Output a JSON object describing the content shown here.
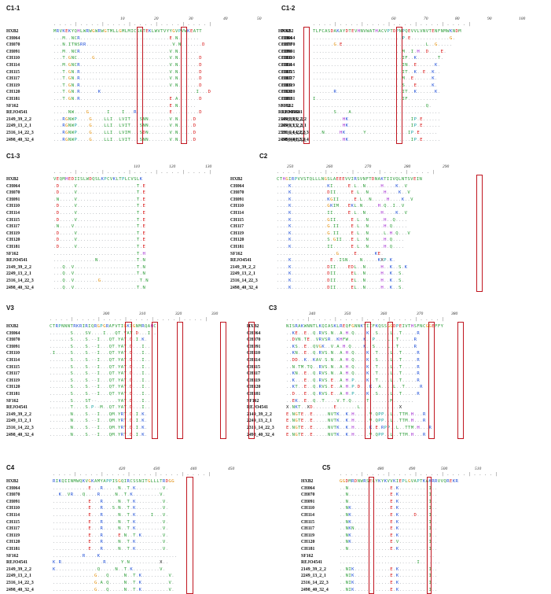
{
  "colors": {
    "box": "#c0151f",
    "H": "#e64a19",
    "blue": "#1f4fd6",
    "green": "#2e9d3a",
    "purple": "#a22bd1",
    "red": "#d91a1a",
    "orange": "#e08a00",
    "teal": "#1aa3a3",
    "dark": "#111111"
  },
  "panels": [
    {
      "title": "C1-1",
      "position_numbers": [
        "10",
        "20",
        "30",
        "40",
        "50"
      ],
      "rows": [
        {
          "label": "HXB2",
          "seq": "MRVKEKYQHLWRWGWRWGTMLLGMLMICSATEKLWVTVYYGVPVWKEATT",
          "right": "HXB2"
        },
        {
          "label": "CH064",
          "seq": "...M..NCR..............................E.N.......",
          "right": "CH064"
        },
        {
          "label": "CH070",
          "seq": "...N.ITNSRR.............................V.N.......D",
          "right": "CH070"
        },
        {
          "label": "CH091",
          "seq": "...M..NCR..............................V.N.......",
          "right": "CH091"
        },
        {
          "label": "CH110",
          "seq": "...T.GNC.....G.........................V.N.......D",
          "right": "CH110"
        },
        {
          "label": "CH114",
          "seq": "...M.GNCR..............................V.N.......D",
          "right": "CH114"
        },
        {
          "label": "CH115",
          "seq": "...T.GN.R..............................V.N.......D",
          "right": "CH115"
        },
        {
          "label": "CH117",
          "seq": "...T.GN.R..............................V.N.......D",
          "right": "CH117"
        },
        {
          "label": "CH119",
          "seq": "...T.GN.R..............................V.N.......D",
          "right": "CH119"
        },
        {
          "label": "CH120",
          "seq": "...T.GN.R......K................................I...D",
          "right": "CH120"
        },
        {
          "label": "CH181",
          "seq": "...T.GN.R..............................E.A.......D",
          "right": "CH181"
        },
        {
          "label": "SF162",
          "seq": ".......................................E.N......",
          "right": "SF162"
        },
        {
          "label": "REJO4541",
          "seq": ".....NW....G......I....I...R...........E.........D",
          "right": "REJO4541"
        },
        {
          "label": "2149_39_2_2",
          "seq": "...RGNWP....G....LLI..LVIT...SNN.......V.N.....D",
          "right": "2149_39_2_2"
        },
        {
          "label": "2249_13_2_1",
          "seq": "...RGNWP....G....LLI..LVIT...SNN.......V.N.....D",
          "right": "2249_13_2_1"
        },
        {
          "label": "2316_14_22_3",
          "seq": "...RGNWP....G....LLI..LVIM...SDN.......V.N.....D",
          "right": "2316_14_22_3"
        },
        {
          "label": "2498_40_32_4",
          "seq": "...RGNWP....G....LLI..LVIT...SNN.......V.N.....D",
          "right": "2498_40_32_4"
        }
      ]
    },
    {
      "title": "C1-2",
      "position_numbers": [
        "60",
        "70",
        "80",
        "90",
        "100"
      ],
      "rows": [
        {
          "label": "HXB2",
          "seq": "TLFCASDAKAYDTEVHNVWATHACVPTDPNPQEVVLVNVTENFNMWKNDM",
          "right": ""
        },
        {
          "label": "CH064",
          "seq": "..............................P.E.............G.",
          "right": ""
        },
        {
          "label": "CH070",
          "seq": ".......G.E............................L..G.....",
          "right": ""
        },
        {
          "label": "CH091",
          "seq": "..............................M..I.H..D....E.",
          "right": ""
        },
        {
          "label": "CH110",
          "seq": "..............................IF..K.......T.",
          "right": ""
        },
        {
          "label": "CH114",
          "seq": "..............................IN..E......K.",
          "right": ""
        },
        {
          "label": "CH115",
          "seq": "..............................IT..K..E..K..",
          "right": ""
        },
        {
          "label": "CH117",
          "seq": "..............................M..E......K.",
          "right": ""
        },
        {
          "label": "CH119",
          "seq": "..............................S...E.....K.",
          "right": ""
        },
        {
          "label": "CH120",
          "seq": ".......R......................IT..K......K.",
          "right": ""
        },
        {
          "label": "CH181",
          "seq": "I.............................IF..........",
          "right": ""
        },
        {
          "label": "SF162",
          "seq": "......................................Q.",
          "right": ""
        },
        {
          "label": "REJO4541",
          "seq": ".......S....A..............................",
          "right": ""
        },
        {
          "label": "2149_39_2_2",
          "seq": "..........HK.....................IP.E......",
          "right": ""
        },
        {
          "label": "2249_13_2_1",
          "seq": "..........HK.....................IP.E......",
          "right": ""
        },
        {
          "label": "2316_14_22_3",
          "seq": "...N.....HK......Y..............IP.E......",
          "right": ""
        },
        {
          "label": "2498_40_32_4",
          "seq": "..........HK.....................IP.E......",
          "right": ""
        }
      ]
    },
    {
      "title": "C1-3",
      "position_numbers": [
        "110",
        "120",
        "130"
      ],
      "rows": [
        {
          "label": "HXB2",
          "seq": "VEQMHEDIISLWDQSLKPCVKLTPLCVSLK",
          "right": "HXB2"
        },
        {
          "label": "CH064",
          "seq": ".D.....V....................T.E",
          "right": "CH064"
        },
        {
          "label": "CH070",
          "seq": ".D.....V....................T.E",
          "right": "CH070"
        },
        {
          "label": "CH091",
          "seq": ".N.....V....................T.E",
          "right": "CH091"
        },
        {
          "label": "CH110",
          "seq": ".D.....V....................T.E",
          "right": "CH110"
        },
        {
          "label": "CH114",
          "seq": ".D.....V....................T.E",
          "right": "CH114"
        },
        {
          "label": "CH115",
          "seq": ".D.....V....................T.E",
          "right": "CH115"
        },
        {
          "label": "CH117",
          "seq": ".N....V.....................T.E",
          "right": "CH117"
        },
        {
          "label": "CH119",
          "seq": ".D.....V....................T.E",
          "right": "CH119"
        },
        {
          "label": "CH120",
          "seq": ".D.....V....................T.E",
          "right": "CH120"
        },
        {
          "label": "CH181",
          "seq": ".D.....V....................T.E",
          "right": "CH181"
        },
        {
          "label": "SF162",
          "seq": "............................T.H",
          "right": "SF162"
        },
        {
          "label": "REJO4541",
          "seq": "..............N.............T.N",
          "right": "REJO4541"
        },
        {
          "label": "2149_39_2_2",
          "seq": "...Q..V.....................T.N",
          "right": "2149_39_2_2"
        },
        {
          "label": "2249_13_2_1",
          "seq": "...Q..V.....................T.N",
          "right": "2249_13_2_1"
        },
        {
          "label": "2316_14_22_3",
          "seq": "...Q..V........G.............T.N",
          "right": "2316_14_22_3"
        },
        {
          "label": "2498_40_32_4",
          "seq": "...Q..V.....................T.N",
          "right": "2498_40_32_4"
        }
      ]
    },
    {
      "title": "C2",
      "position_numbers": [
        "250",
        "260",
        "270",
        "280",
        "290"
      ],
      "rows": [
        {
          "label": "HXB2",
          "seq": "CTHGIRPVVSTQLLLNGSLAEEEVVIRSVNFTDNAKTIIVQLNTSVEIN",
          "right": ""
        },
        {
          "label": "CH064",
          "seq": "....K............KI.....E.L..N.....H....K..V",
          "right": ""
        },
        {
          "label": "CH070",
          "seq": "....K............DII.....E.L..N.....H....K..V",
          "right": ""
        },
        {
          "label": "CH091",
          "seq": "....K............KGII.....E.L..N.....H....K..V",
          "right": ""
        },
        {
          "label": "CH110",
          "seq": "....K............GKIM...EKL.N.....H.Q..I..V",
          "right": ""
        },
        {
          "label": "CH114",
          "seq": "....K............II.....E.L..N.....H....K..V",
          "right": ""
        },
        {
          "label": "CH115",
          "seq": "....K............GII.....E.L..N.....H..Q....",
          "right": ""
        },
        {
          "label": "CH117",
          "seq": "....K............G.II....E.L..N.....H.Q.....",
          "right": ""
        },
        {
          "label": "CH119",
          "seq": "....K............G.II....E.L..N.....L.H.Q...V",
          "right": ""
        },
        {
          "label": "CH120",
          "seq": "....K............S.GII...E.L..N.....H.Q....",
          "right": ""
        },
        {
          "label": "CH181",
          "seq": "....K............II......E.L..N.....H.Q....",
          "right": ""
        },
        {
          "label": "SF162",
          "seq": "....................G.....E......KE.",
          "right": ""
        },
        {
          "label": "REJO4541",
          "seq": "....K.............E..ISN....N.....KXP.K.",
          "right": ""
        },
        {
          "label": "2149_39_2_2",
          "seq": "....K............DII....EDL..N.....H..K..S.K",
          "right": ""
        },
        {
          "label": "2249_13_2_1",
          "seq": "....K............DII.....EL..N.....H..K..S.",
          "right": ""
        },
        {
          "label": "2316_14_22_3",
          "seq": "....K............DII.....EL..N.....H..K..S.",
          "right": ""
        },
        {
          "label": "2498_40_32_4",
          "seq": "....K............DII.....EL..N.....H..K..S.",
          "right": ""
        }
      ]
    },
    {
      "title": "V3",
      "position_numbers": [
        "300",
        "310",
        "320",
        "330"
      ],
      "rows": [
        {
          "label": "HXB2",
          "seq": "CTRPNNNTRKRIRIQRGPGRAFVTIGKIGNMRQAHC",
          "right": "HXB2"
        },
        {
          "label": "CH064",
          "seq": ".......S....SV....I...QT.YAT.D...I..",
          "right": "CH064"
        },
        {
          "label": "CH070",
          "seq": ".......S....S.--I...QT.YAT.D.I.K.",
          "right": "CH070"
        },
        {
          "label": "CH091",
          "seq": ".......S....S.--I...QT.YAT.D...I...",
          "right": "CH091"
        },
        {
          "label": "CH110",
          "seq": ".I.....S....S.--I...QT.YAT.D...I...",
          "right": "CH110"
        },
        {
          "label": "CH114",
          "seq": ".......S....S.--I...QT.YAT.D...I...",
          "right": "CH114"
        },
        {
          "label": "CH115",
          "seq": ".......S....S.--I...QT.YAT.D...I...",
          "right": "CH115"
        },
        {
          "label": "CH117",
          "seq": ".......S....S.--I...QT.YAT.D...I...",
          "right": "CH117"
        },
        {
          "label": "CH119",
          "seq": ".......S....S.--I...QT.YAT.D...I...",
          "right": "CH119"
        },
        {
          "label": "CH120",
          "seq": ".......S....S.--I...QT.YAT.D...I...",
          "right": "CH120"
        },
        {
          "label": "CH181",
          "seq": ".......S....S.--I...QT.YAT.D...I...",
          "right": "CH181"
        },
        {
          "label": "SF162",
          "seq": ".......S....ST--.......YAT.D...I...",
          "right": "SF162"
        },
        {
          "label": "REJO4541",
          "seq": ".......T....S.P--M..QT.YAT.D...I...",
          "right": "REJO4541"
        },
        {
          "label": "2149_39_2_2",
          "seq": ".......N....S.--I...QM.YRT.D.I.K.",
          "right": "2149_39_2_2"
        },
        {
          "label": "2249_13_2_1",
          "seq": ".......N....S.--I...QM.YRT.D.I.K.",
          "right": "2249_13_2_1"
        },
        {
          "label": "2316_14_22_3",
          "seq": ".......N....S.--I...QM.YRT.D.I.K.",
          "right": "2316_14_22_3"
        },
        {
          "label": "2498_40_32_4",
          "seq": ".......N....S.--I...QM.YRT.D.I.K.",
          "right": "2498_40_32_4"
        }
      ]
    },
    {
      "title": "C3",
      "position_numbers": [
        "340",
        "350",
        "360",
        "370",
        "380"
      ],
      "rows": [
        {
          "label": "",
          "seq": "NISRAKWNNTLKQIASKLREQFGNNKTIIFKQSSGGDPEIVTHSFNCGGEFFY",
          "right": ""
        },
        {
          "label": "",
          "seq": "..KE..E..Q.RVS.N..A.H.Q....K..S....L..T.....R",
          "right": ""
        },
        {
          "label": "",
          "seq": "..DVN.TE..VRVSR..KHFW.....K..P....L..T.....R",
          "right": ""
        },
        {
          "label": "",
          "seq": "..KS..E..QVGK..V.A.H.Q....K..S....L..T.....R",
          "right": ""
        },
        {
          "label": "",
          "seq": "..KN..E..Q.RVS.N..A.H.Q....K..T....L..T.....R",
          "right": ""
        },
        {
          "label": "",
          "seq": "..DD..K..KAV.S.N..A.H.Q....K..S....L..T.....R",
          "right": ""
        },
        {
          "label": "",
          "seq": "..N.TM.TQ..RVS.N..A.H.Q....K..T....L..T.....R",
          "right": ""
        },
        {
          "label": "",
          "seq": "..KN..E..Q.RVS.N..A.H.Q....K..T....L..T.....R",
          "right": ""
        },
        {
          "label": "",
          "seq": "..K...E..Q.RVS.E..A.H.P....K..T....L..T.....R",
          "right": ""
        },
        {
          "label": "",
          "seq": "..KT..E..Q.RVS.E..A.H.P.D...K..A....L..T.....R",
          "right": ""
        },
        {
          "label": "",
          "seq": "..D...E..Q.RVS.E..A.H.P....K..S....L..T.....R",
          "right": ""
        },
        {
          "label": "",
          "seq": "..EK..E..Q..T....V.T.Q.....T.......M.......",
          "right": ""
        },
        {
          "label": "",
          "seq": "X.NKT..XD.......E.......L.............X",
          "right": ""
        },
        {
          "label": "",
          "seq": "E.NGTE..E.....NVTK..K.H.....V.QPP..L..TTM.H...R",
          "right": ""
        },
        {
          "label": "",
          "seq": "E.NGTE..E.....NVTK..K.H.....V.QPP..L..TTM.H...R",
          "right": ""
        },
        {
          "label": "",
          "seq": "E.NGTE..E.....NVTK..K.H.....K.E.RPP..L..TTM.H...R",
          "right": ""
        },
        {
          "label": "",
          "seq": "E.NGTE..E.....NVTK..K.H.....V.QPP..L..TTM.H...R",
          "right": ""
        }
      ]
    },
    {
      "title": "C4",
      "position_numbers": [
        "420",
        "430",
        "440",
        "450"
      ],
      "rows": [
        {
          "label": "HXB2",
          "seq": "RIKQIINMWQKVGKAMYAPPISGQIRCSSNITGLLLTRDGG",
          "right": "HXB2"
        },
        {
          "label": "CH064",
          "seq": "............E...R.....N..T.K.........V.",
          "right": "CH064"
        },
        {
          "label": "CH070",
          "seq": "..K..VR...Q....R.....N..T.K.........V.",
          "right": "CH070"
        },
        {
          "label": "CH091",
          "seq": "............E...R.....N..T.K.........V.",
          "right": "CH091"
        },
        {
          "label": "CH110",
          "seq": "............E...R...S.N..T.K.........V.",
          "right": "CH110"
        },
        {
          "label": "CH114",
          "seq": "............E...R.....N..T.K.....I...V.",
          "right": "CH114"
        },
        {
          "label": "CH115",
          "seq": "............E...R.....N..T.K.........V.",
          "right": "CH115"
        },
        {
          "label": "CH117",
          "seq": "............E...R.....N..T.K.........V.",
          "right": "CH117"
        },
        {
          "label": "CH119",
          "seq": "............E...R.....E.N..T.K.......V.",
          "right": "CH119"
        },
        {
          "label": "CH120",
          "seq": "............E...R.....N..T.K.........V.",
          "right": "CH120"
        },
        {
          "label": "CH181",
          "seq": "............E...R.....N..T.K.........V.",
          "right": "CH181"
        },
        {
          "label": "SF162",
          "seq": "..........R....K..........................",
          "right": "SF162"
        },
        {
          "label": "REJO4541",
          "seq": "K.R..............R.....Y.N..........X..",
          "right": "REJO4541"
        },
        {
          "label": "2149_39_2_2",
          "seq": "K..............Q.....N..T.K.........V.",
          "right": "2149_39_2_2"
        },
        {
          "label": "2249_13_2_1",
          "seq": "..............G...Q.....N..T.K.........V.",
          "right": "2249_13_2_1"
        },
        {
          "label": "2316_14_22_3",
          "seq": "..............G.A.Q.....N..T.K.........V.",
          "right": "2316_14_22_3"
        },
        {
          "label": "2498_40_32_4",
          "seq": "..............G...Q.....N..T.K.........V.",
          "right": "2498_40_32_4"
        }
      ]
    },
    {
      "title": "C5",
      "position_numbers": [
        "480",
        "490",
        "500",
        "510"
      ],
      "rows": [
        {
          "label": "",
          "seq": "GGDMRDNWRSELYKYKVVKIEPLGVAPTKAKRRVVQREKR",
          "right": ""
        },
        {
          "label": "",
          "seq": "..N..............E.K..........I..",
          "right": ""
        },
        {
          "label": "",
          "seq": "..N..............E.K..........I..",
          "right": ""
        },
        {
          "label": "",
          "seq": "..N..............E.K..........I..",
          "right": ""
        },
        {
          "label": "",
          "seq": "..NK.............E.K..........I..",
          "right": ""
        },
        {
          "label": "",
          "seq": "..NK.............E.K.....D....I..",
          "right": ""
        },
        {
          "label": "",
          "seq": "..NK.............E.K..........I..",
          "right": ""
        },
        {
          "label": "",
          "seq": "..NKN............E.K..........I..",
          "right": ""
        },
        {
          "label": "",
          "seq": "..NK.............E.K..........I..",
          "right": ""
        },
        {
          "label": "",
          "seq": "..NK.............E.V..........I..",
          "right": ""
        },
        {
          "label": "",
          "seq": "..N..............E.K..........I..",
          "right": ""
        },
        {
          "label": "",
          "seq": "................................",
          "right": ""
        },
        {
          "label": "",
          "seq": "..........................I.......",
          "right": ""
        },
        {
          "label": "",
          "seq": "..NIK............E.K..........I..",
          "right": ""
        },
        {
          "label": "",
          "seq": "..NIK............E.K..........I..",
          "right": ""
        },
        {
          "label": "",
          "seq": "..NIK............E.K..........I..",
          "right": ""
        },
        {
          "label": "",
          "seq": "..NIK............E.K..........I..",
          "right": ""
        }
      ]
    }
  ]
}
